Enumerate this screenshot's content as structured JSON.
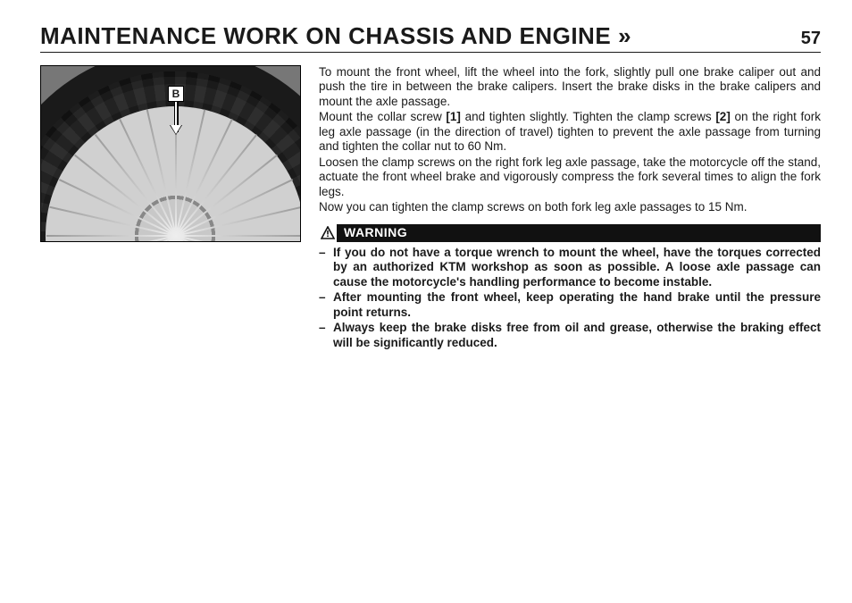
{
  "header": {
    "title": "MAINTENANCE WORK ON CHASSIS AND ENGINE",
    "arrow": "»",
    "page_number": "57"
  },
  "figure": {
    "label": "B"
  },
  "body": {
    "p1": "To mount the front wheel, lift the wheel into the fork, slightly pull one brake caliper out and push the tire in between the brake calipers. Insert the brake disks in the brake calipers and mount the axle passage.",
    "p2a": "Mount the collar screw ",
    "ref1": "[1]",
    "p2b": " and tighten slightly. Tighten the clamp screws ",
    "ref2": "[2]",
    "p2c": " on the right fork leg axle passage (in the direction of travel) tighten to prevent the axle passage from turning and tighten the collar nut to 60 Nm.",
    "p3": "Loosen the clamp screws on the right fork leg axle passage, take the motorcycle off the stand, actuate the front wheel brake and vigorously compress the fork several times to align the fork legs.",
    "p4": "Now you can tighten the clamp screws on both fork leg axle passages to 15 Nm."
  },
  "warning": {
    "label": "WARNING",
    "items": [
      "If you do not have a torque wrench to mount the wheel, have the torques corrected by an authorized KTM workshop as soon as possible. A loose axle passage can cause the motorcycle's handling performance to become instable.",
      "After mounting the front wheel, keep operating the hand brake until the pressure point returns.",
      "Always keep the brake disks free from oil and grease, otherwise the braking effect will be significantly reduced."
    ]
  }
}
